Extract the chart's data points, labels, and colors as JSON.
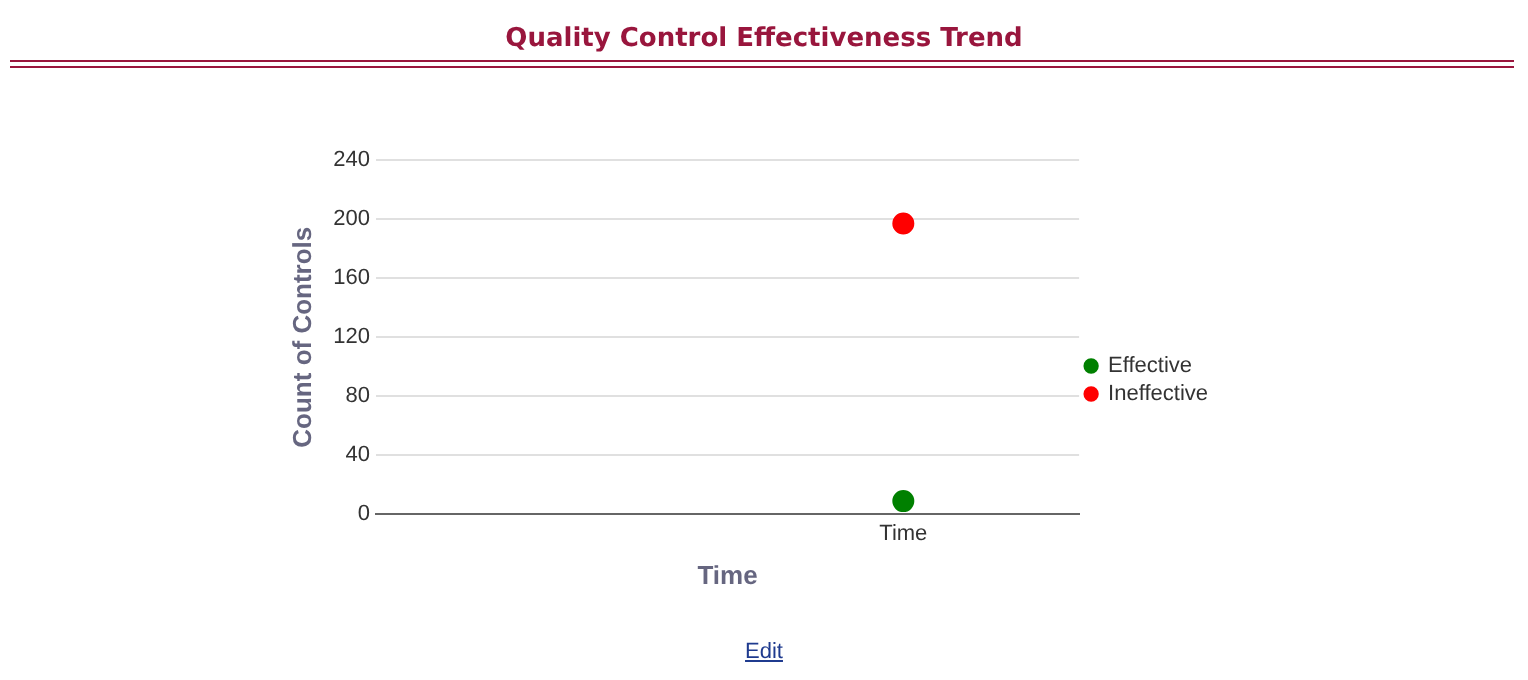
{
  "chart_data": {
    "type": "line",
    "title": "Quality Control Effectiveness Trend",
    "xlabel": "Time",
    "ylabel": "Count of Controls",
    "categories": [
      null,
      "Time"
    ],
    "series": [
      {
        "name": "Effective",
        "color": "#008000",
        "values": [
          null,
          9
        ]
      },
      {
        "name": "Ineffective",
        "color": "#ff0000",
        "values": [
          null,
          197
        ]
      }
    ],
    "ylim": [
      0,
      240
    ],
    "yticks": [
      0,
      40,
      80,
      120,
      160,
      200,
      240
    ],
    "grid": "y",
    "legend": "right",
    "marker": "circle",
    "annotations": [
      "Edit"
    ]
  }
}
